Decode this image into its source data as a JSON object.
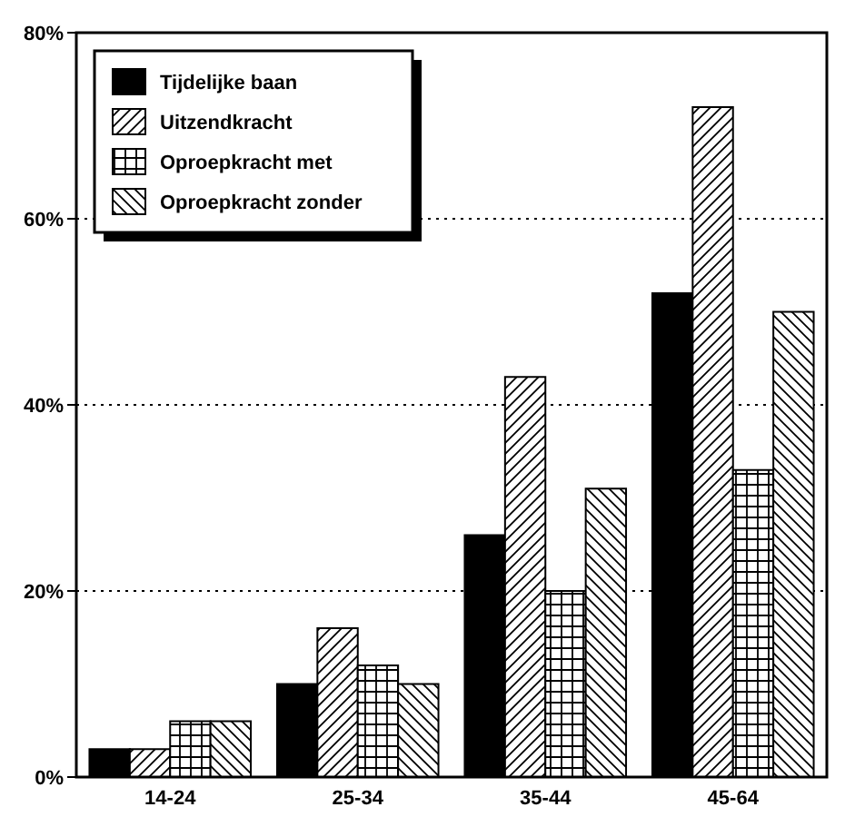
{
  "chart_data": {
    "type": "bar",
    "categories": [
      "14-24",
      "25-34",
      "35-44",
      "45-64"
    ],
    "series": [
      {
        "name": "Tijdelijke baan",
        "color": "#000000",
        "values": [
          3,
          10,
          26,
          52
        ]
      },
      {
        "name": "Uitzendkracht",
        "color": "#000000",
        "values": [
          3,
          16,
          43,
          72
        ]
      },
      {
        "name": "Oproepkracht met",
        "color": "#000000",
        "values": [
          6,
          12,
          20,
          33
        ]
      },
      {
        "name": "Oproepkracht zonder",
        "color": "#000000",
        "values": [
          6,
          10,
          31,
          50
        ]
      }
    ],
    "ylim": [
      0,
      80
    ],
    "yticks": [
      {
        "value": 0,
        "label": "0%"
      },
      {
        "value": 20,
        "label": "20%"
      },
      {
        "value": 40,
        "label": "40%"
      },
      {
        "value": 60,
        "label": "60%"
      },
      {
        "value": 80,
        "label": "80%"
      }
    ],
    "grid": "y",
    "legend": "top left"
  }
}
